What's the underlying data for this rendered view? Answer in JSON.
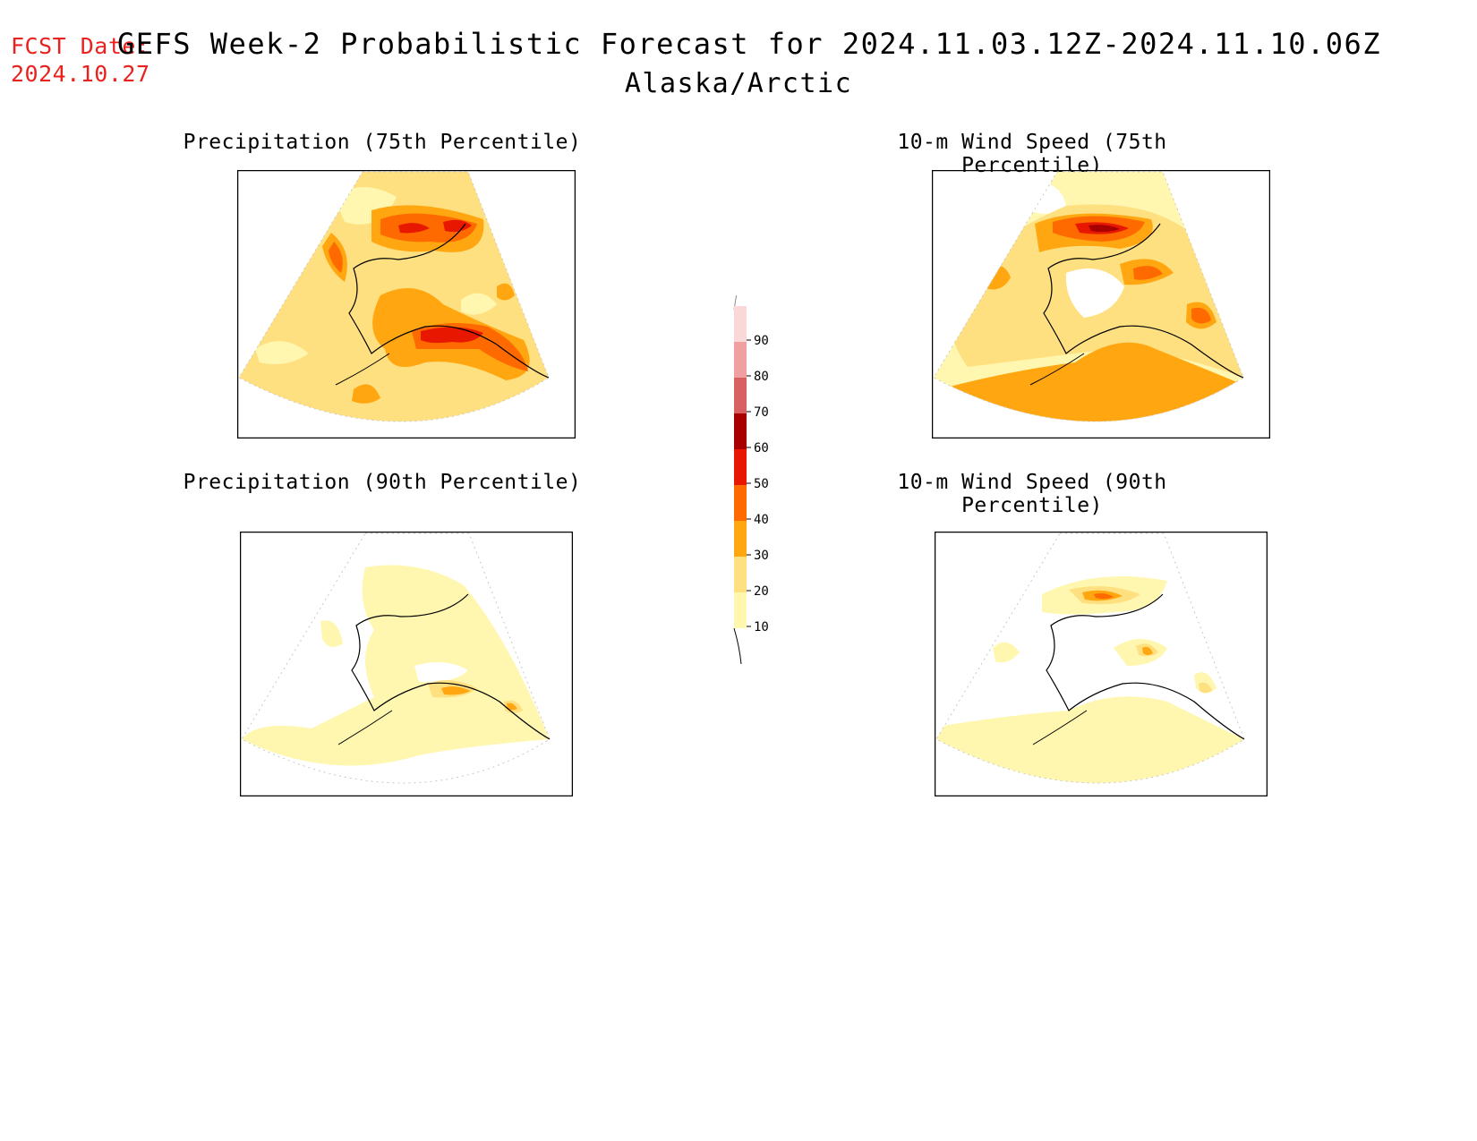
{
  "header": {
    "fcst_label": "FCST Date:",
    "fcst_date": "2024.10.27",
    "title": "GEFS Week-2 Probabilistic Forecast for 2024.11.03.12Z-2024.11.10.06Z",
    "region": "Alaska/Arctic"
  },
  "panels": [
    {
      "title": "Precipitation (75th Percentile)"
    },
    {
      "title": "10-m Wind Speed (75th Percentile)"
    },
    {
      "title": "Precipitation (90th Percentile)"
    },
    {
      "title": "10-m Wind Speed (90th Percentile)"
    }
  ],
  "colorbar": {
    "levels": [
      "10",
      "20",
      "30",
      "40",
      "50",
      "60",
      "70",
      "80",
      "90"
    ],
    "colors": [
      "#fff7b0",
      "#ffe080",
      "#ffa610",
      "#ff6a00",
      "#e81800",
      "#a80000",
      "#d86060",
      "#f0a0a0",
      "#fbd8d8"
    ]
  },
  "legend_colors": {
    "white": "#ffffff",
    "c10": "#fff7b0",
    "c20": "#ffe080",
    "c30": "#ffa610",
    "c40": "#ff6a00",
    "c50": "#e81800",
    "c60": "#a80000"
  }
}
